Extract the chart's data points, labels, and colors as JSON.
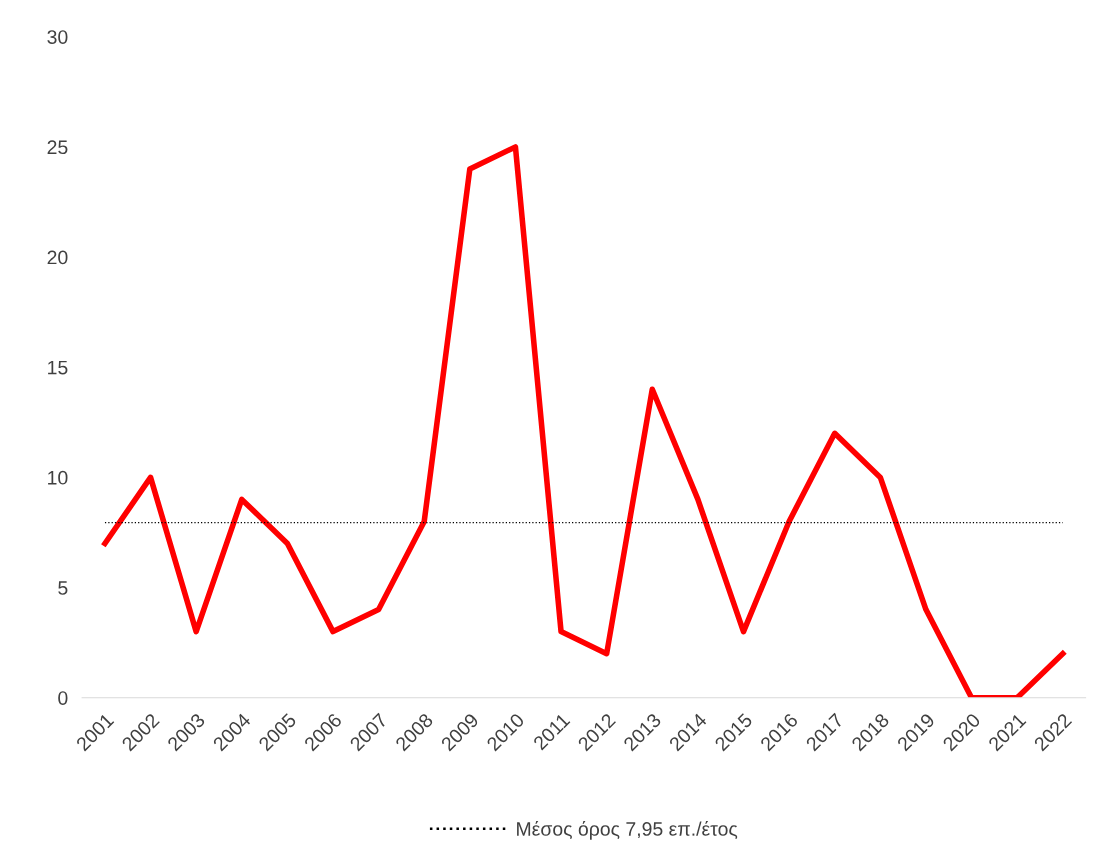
{
  "chart_data": {
    "type": "line",
    "categories": [
      "2001",
      "2002",
      "2003",
      "2004",
      "2005",
      "2006",
      "2007",
      "2008",
      "2009",
      "2010",
      "2011",
      "2012",
      "2013",
      "2014",
      "2015",
      "2016",
      "2017",
      "2018",
      "2019",
      "2020",
      "2021",
      "2022"
    ],
    "series": [
      {
        "color": "#ff0000",
        "values": [
          7,
          10,
          3,
          9,
          7,
          3,
          4,
          8,
          24,
          25,
          3,
          2,
          14,
          9,
          3,
          8,
          12,
          10,
          4,
          0,
          0,
          2
        ]
      }
    ],
    "ylim": [
      0,
      30
    ],
    "yticks": [
      0,
      5,
      10,
      15,
      20,
      25,
      30
    ],
    "ref_lines": [
      {
        "axis": "y",
        "value": 7.95,
        "label": "Μέσος όρος 7,95 επ./έτος",
        "color": "#000000",
        "line_style": "dotted"
      }
    ],
    "legend": "bottom",
    "marker": "none",
    "line_style": "solid",
    "grid": false
  }
}
